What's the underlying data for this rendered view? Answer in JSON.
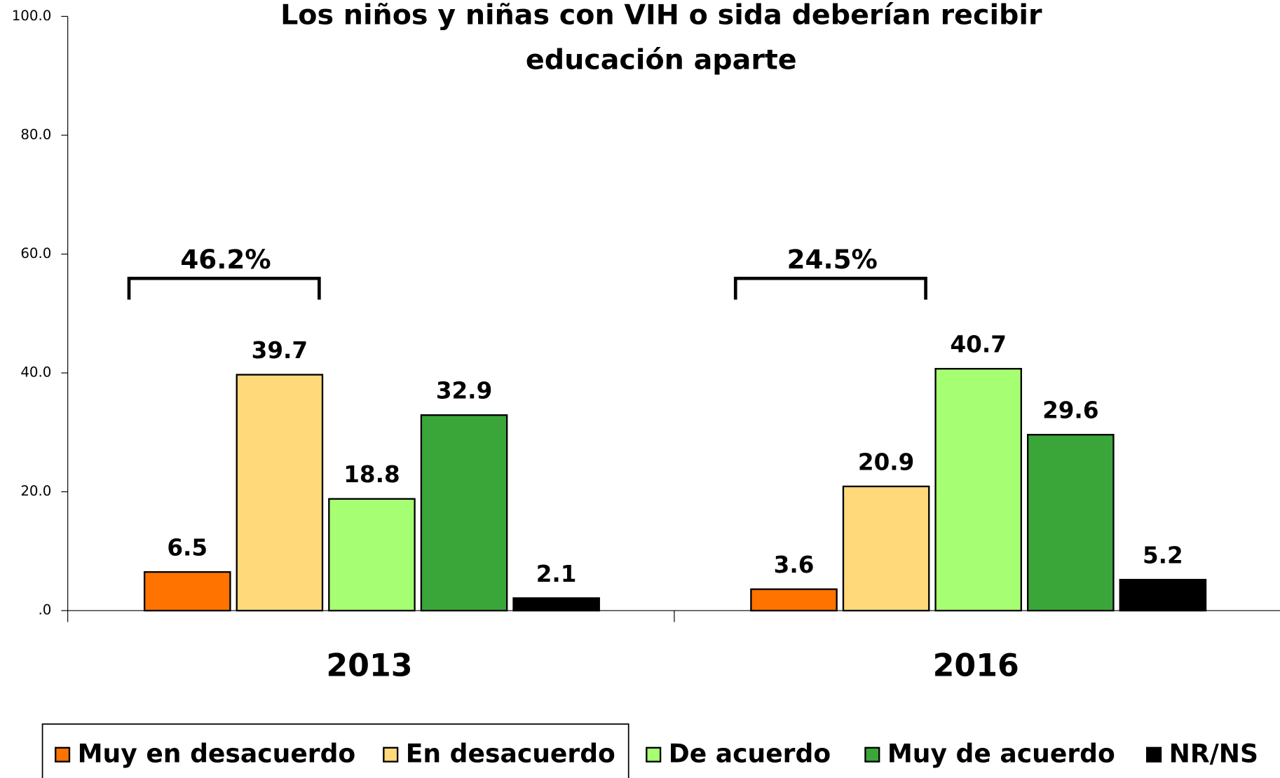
{
  "chart_data": {
    "type": "bar",
    "title": "Los niños y niñas con VIH o sida deberían recibir educación aparte",
    "categories": [
      "2013",
      "2016"
    ],
    "series": [
      {
        "name": "Muy en desacuerdo",
        "color": "#ff7300",
        "values": [
          6.5,
          3.6
        ]
      },
      {
        "name": "En desacuerdo",
        "color": "#ffd97a",
        "values": [
          39.7,
          20.9
        ]
      },
      {
        "name": "De acuerdo",
        "color": "#a6ff73",
        "values": [
          18.8,
          40.7
        ]
      },
      {
        "name": "Muy de acuerdo",
        "color": "#3aa63a",
        "values": [
          32.9,
          29.6
        ]
      },
      {
        "name": "NR/NS",
        "color": "#000000",
        "values": [
          2.1,
          5.2
        ]
      }
    ],
    "annotations": [
      "46.2%",
      "24.5%"
    ],
    "ylim": [
      0,
      100
    ],
    "yticks": [
      {
        "value": 0,
        "label": ".0"
      },
      {
        "value": 20,
        "label": "20.0"
      },
      {
        "value": 40,
        "label": "40.0"
      },
      {
        "value": 60,
        "label": "60.0"
      },
      {
        "value": 80,
        "label": "80.0"
      },
      {
        "value": 100,
        "label": "100.0"
      }
    ],
    "legend": "bottom"
  }
}
